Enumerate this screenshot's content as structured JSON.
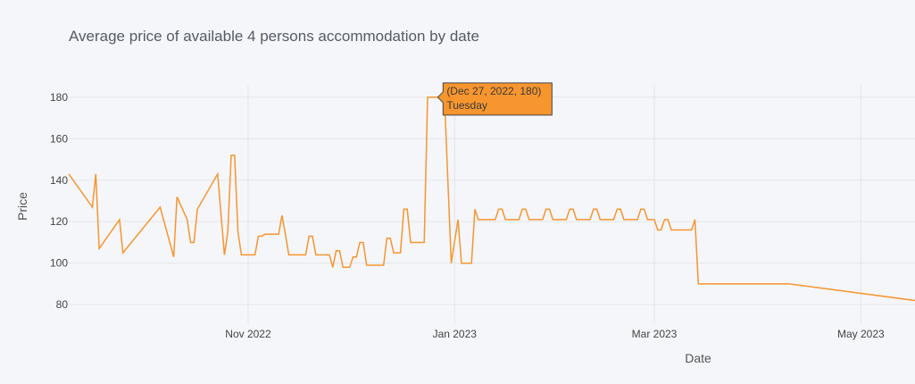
{
  "chart_data": {
    "type": "line",
    "title": "Average price of available 4 persons accommodation by date",
    "xlabel": "Date",
    "ylabel": "Price",
    "line_color": "#f7952e",
    "grid": true,
    "xlim": [
      "2022-09-09",
      "2023-05-17"
    ],
    "ylim": [
      71,
      186
    ],
    "y_ticks": [
      80,
      100,
      120,
      140,
      160,
      180
    ],
    "x_ticks": [
      {
        "date": "2022-11-01",
        "label": "Nov 2022"
      },
      {
        "date": "2023-01-01",
        "label": "Jan 2023"
      },
      {
        "date": "2023-03-01",
        "label": "Mar 2023"
      },
      {
        "date": "2023-05-01",
        "label": "May 2023"
      }
    ],
    "points": [
      [
        "2022-09-09",
        143
      ],
      [
        "2022-09-16",
        127
      ],
      [
        "2022-09-17",
        143
      ],
      [
        "2022-09-18",
        107
      ],
      [
        "2022-09-24",
        121
      ],
      [
        "2022-09-25",
        105
      ],
      [
        "2022-10-06",
        127
      ],
      [
        "2022-10-10",
        103
      ],
      [
        "2022-10-11",
        132
      ],
      [
        "2022-10-14",
        121
      ],
      [
        "2022-10-15",
        110
      ],
      [
        "2022-10-16",
        110
      ],
      [
        "2022-10-17",
        126
      ],
      [
        "2022-10-23",
        143
      ],
      [
        "2022-10-25",
        104
      ],
      [
        "2022-10-26",
        115
      ],
      [
        "2022-10-27",
        152
      ],
      [
        "2022-10-28",
        152
      ],
      [
        "2022-10-29",
        115
      ],
      [
        "2022-10-30",
        104
      ],
      [
        "2022-11-03",
        104
      ],
      [
        "2022-11-04",
        113
      ],
      [
        "2022-11-05",
        113
      ],
      [
        "2022-11-06",
        114
      ],
      [
        "2022-11-10",
        114
      ],
      [
        "2022-11-11",
        123
      ],
      [
        "2022-11-12",
        114
      ],
      [
        "2022-11-13",
        104
      ],
      [
        "2022-11-18",
        104
      ],
      [
        "2022-11-19",
        113
      ],
      [
        "2022-11-20",
        113
      ],
      [
        "2022-11-21",
        104
      ],
      [
        "2022-11-25",
        104
      ],
      [
        "2022-11-26",
        98
      ],
      [
        "2022-11-27",
        106
      ],
      [
        "2022-11-28",
        106
      ],
      [
        "2022-11-29",
        98
      ],
      [
        "2022-12-01",
        98
      ],
      [
        "2022-12-02",
        103
      ],
      [
        "2022-12-03",
        103
      ],
      [
        "2022-12-04",
        110
      ],
      [
        "2022-12-05",
        110
      ],
      [
        "2022-12-06",
        99
      ],
      [
        "2022-12-11",
        99
      ],
      [
        "2022-12-12",
        112
      ],
      [
        "2022-12-13",
        112
      ],
      [
        "2022-12-14",
        105
      ],
      [
        "2022-12-16",
        105
      ],
      [
        "2022-12-17",
        126
      ],
      [
        "2022-12-18",
        126
      ],
      [
        "2022-12-19",
        110
      ],
      [
        "2022-12-23",
        110
      ],
      [
        "2022-12-24",
        180
      ],
      [
        "2022-12-27",
        180
      ],
      [
        "2022-12-29",
        180
      ],
      [
        "2022-12-31",
        100
      ],
      [
        "2023-01-02",
        121
      ],
      [
        "2023-01-03",
        100
      ],
      [
        "2023-01-06",
        100
      ],
      [
        "2023-01-07",
        126
      ],
      [
        "2023-01-08",
        121
      ],
      [
        "2023-01-13",
        121
      ],
      [
        "2023-01-14",
        126
      ],
      [
        "2023-01-15",
        126
      ],
      [
        "2023-01-16",
        121
      ],
      [
        "2023-01-20",
        121
      ],
      [
        "2023-01-21",
        126
      ],
      [
        "2023-01-22",
        126
      ],
      [
        "2023-01-23",
        121
      ],
      [
        "2023-01-27",
        121
      ],
      [
        "2023-01-28",
        126
      ],
      [
        "2023-01-29",
        126
      ],
      [
        "2023-01-30",
        121
      ],
      [
        "2023-02-03",
        121
      ],
      [
        "2023-02-04",
        126
      ],
      [
        "2023-02-05",
        126
      ],
      [
        "2023-02-06",
        121
      ],
      [
        "2023-02-10",
        121
      ],
      [
        "2023-02-11",
        126
      ],
      [
        "2023-02-12",
        126
      ],
      [
        "2023-02-13",
        121
      ],
      [
        "2023-02-17",
        121
      ],
      [
        "2023-02-18",
        126
      ],
      [
        "2023-02-19",
        126
      ],
      [
        "2023-02-20",
        121
      ],
      [
        "2023-02-24",
        121
      ],
      [
        "2023-02-25",
        126
      ],
      [
        "2023-02-26",
        126
      ],
      [
        "2023-02-27",
        121
      ],
      [
        "2023-03-01",
        121
      ],
      [
        "2023-03-02",
        116
      ],
      [
        "2023-03-03",
        116
      ],
      [
        "2023-03-04",
        121
      ],
      [
        "2023-03-05",
        121
      ],
      [
        "2023-03-06",
        116
      ],
      [
        "2023-03-12",
        116
      ],
      [
        "2023-03-13",
        121
      ],
      [
        "2023-03-14",
        90
      ],
      [
        "2023-04-10",
        90
      ],
      [
        "2023-05-17",
        82
      ]
    ],
    "hover": {
      "date": "2022-12-27",
      "value": 180,
      "label": "(Dec 27, 2022, 180)",
      "sublabel": "Tuesday"
    }
  }
}
